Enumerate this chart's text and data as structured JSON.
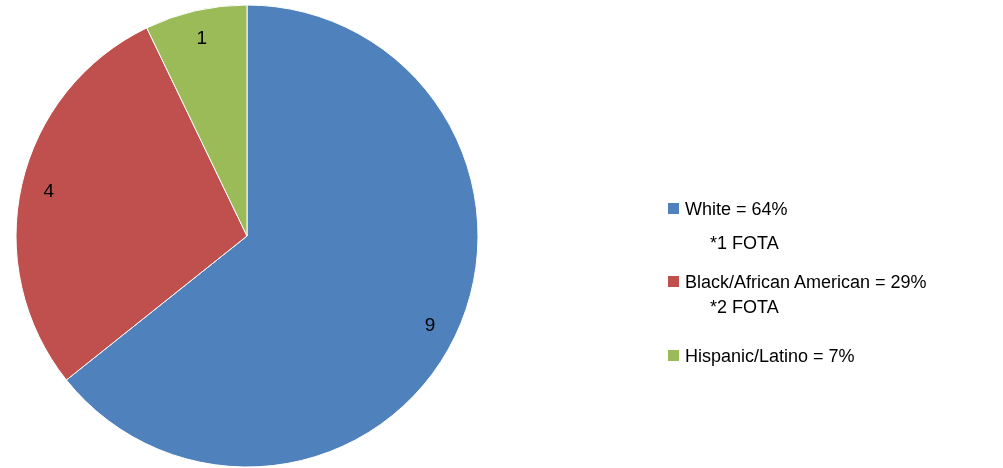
{
  "chart_data": {
    "type": "pie",
    "categories": [
      "White = 64%",
      "Black/African American = 29%",
      "Hispanic/Latino = 7%"
    ],
    "values": [
      9,
      4,
      1
    ],
    "colors": [
      "#4f81bd",
      "#c0504d",
      "#9bbb59"
    ],
    "data_labels": true,
    "legend": "right",
    "annotations": [
      "*1 FOTA",
      "*2 FOTA"
    ]
  }
}
